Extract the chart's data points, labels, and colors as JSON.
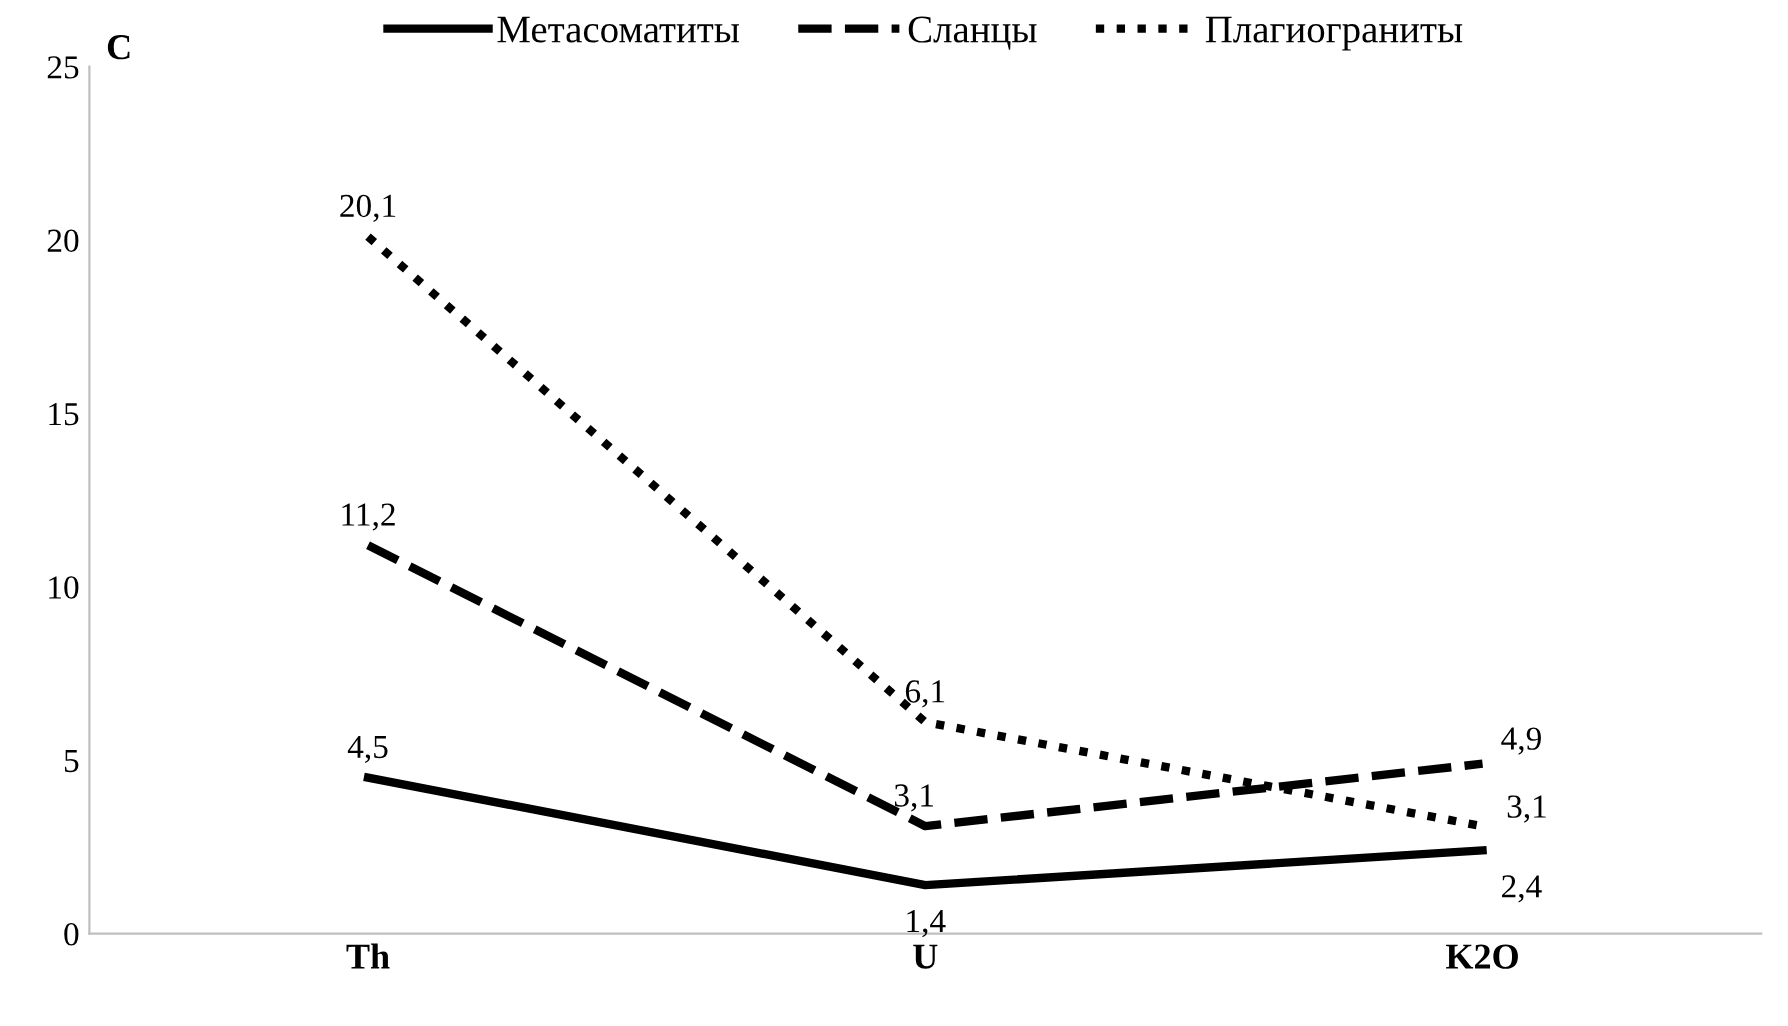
{
  "chart_data": {
    "type": "line",
    "ylabel": "C",
    "categories": [
      "Th",
      "U",
      "K2O"
    ],
    "series": [
      {
        "name": "Метасоматиты",
        "color": "#000000",
        "line_style": "solid",
        "values": [
          4.5,
          1.4,
          2.4
        ],
        "value_labels": [
          "4,5",
          "1,4",
          "2,4"
        ]
      },
      {
        "name": "Сланцы",
        "color": "#000000",
        "line_style": "dashed",
        "values": [
          11.2,
          3.1,
          4.9
        ],
        "value_labels": [
          "11,2",
          "3,1",
          "4,9"
        ]
      },
      {
        "name": "Плагиограниты",
        "color": "#000000",
        "line_style": "dotted",
        "values": [
          20.1,
          6.1,
          3.1
        ],
        "value_labels": [
          "20,1",
          "6,1",
          "3,1"
        ]
      }
    ],
    "ylim": [
      0,
      25
    ],
    "yticks": [
      0,
      5,
      10,
      15,
      20,
      25
    ],
    "grid": false,
    "legend": "top",
    "marker": "none"
  }
}
